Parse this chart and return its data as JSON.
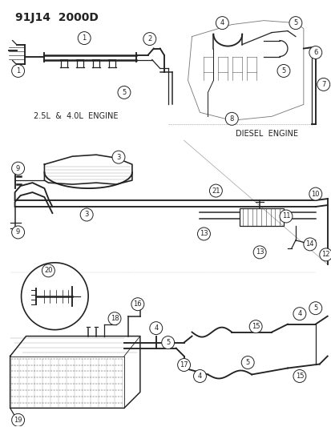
{
  "title": "91J14  2000D",
  "bg_color": "#ffffff",
  "line_color": "#222222",
  "label_2_5L": "2.5L  &  4.0L  ENGINE",
  "label_diesel": "DIESEL  ENGINE",
  "fig_w": 4.14,
  "fig_h": 5.33,
  "dpi": 100
}
